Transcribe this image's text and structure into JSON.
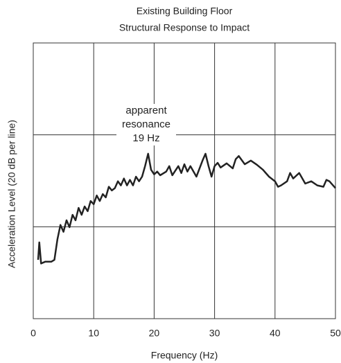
{
  "chart_data": {
    "type": "line",
    "title": [
      "Existing Building Floor",
      "Structural Response to Impact"
    ],
    "xlabel": "Frequency (Hz)",
    "ylabel": "Acceleration Level (20 dB per line)",
    "annotation": [
      "apparent",
      "resonance",
      "19 Hz"
    ],
    "color": "#222222",
    "x": [
      0.8,
      1.0,
      1.3,
      2,
      3,
      3.5,
      4,
      4.5,
      5,
      5.5,
      6,
      6.5,
      7,
      7.5,
      8,
      8.5,
      9,
      9.5,
      10,
      10.5,
      11,
      11.5,
      12,
      12.5,
      13,
      13.5,
      14,
      14.5,
      15,
      15.5,
      16,
      16.5,
      17,
      17.5,
      18,
      18.5,
      19,
      19.5,
      20,
      20.5,
      21,
      22,
      22.5,
      23,
      24,
      24.5,
      25,
      25.5,
      26,
      27,
      28,
      28.5,
      29,
      29.5,
      30,
      30.5,
      31,
      32,
      33,
      33.5,
      34,
      35,
      36,
      37,
      38,
      39,
      40,
      40.5,
      41,
      42,
      42.5,
      43,
      44,
      45,
      46,
      47,
      48,
      48.5,
      49,
      50
    ],
    "values": [
      12.8,
      16.6,
      12,
      12.4,
      12.4,
      12.8,
      17.3,
      20.4,
      18.9,
      21.4,
      19.9,
      22.6,
      21.4,
      24.1,
      22.6,
      24.4,
      23.4,
      25.6,
      24.9,
      26.8,
      25.6,
      27.1,
      26.4,
      28.7,
      27.9,
      28.4,
      29.9,
      29,
      30.5,
      29,
      30.2,
      29,
      30.9,
      29.9,
      30.9,
      33.2,
      35.9,
      32.4,
      31.4,
      32,
      31.2,
      32,
      33.2,
      31.2,
      33.2,
      31.7,
      33.6,
      32,
      33.2,
      30.9,
      34.4,
      35.9,
      33.2,
      30.9,
      33.2,
      33.9,
      32.9,
      33.8,
      32.7,
      34.7,
      35.4,
      33.6,
      34.4,
      33.5,
      32.4,
      30.9,
      29.9,
      28.7,
      29,
      29.9,
      31.7,
      30.5,
      31.7,
      29.4,
      29.9,
      29,
      28.7,
      30.2,
      29.9,
      28.4
    ],
    "xlim": [
      0,
      50
    ],
    "xticks": [
      0,
      10,
      20,
      30,
      40,
      50
    ],
    "ylim": [
      0,
      60
    ],
    "yticks": [
      0,
      20,
      40,
      60
    ],
    "grid": true
  }
}
